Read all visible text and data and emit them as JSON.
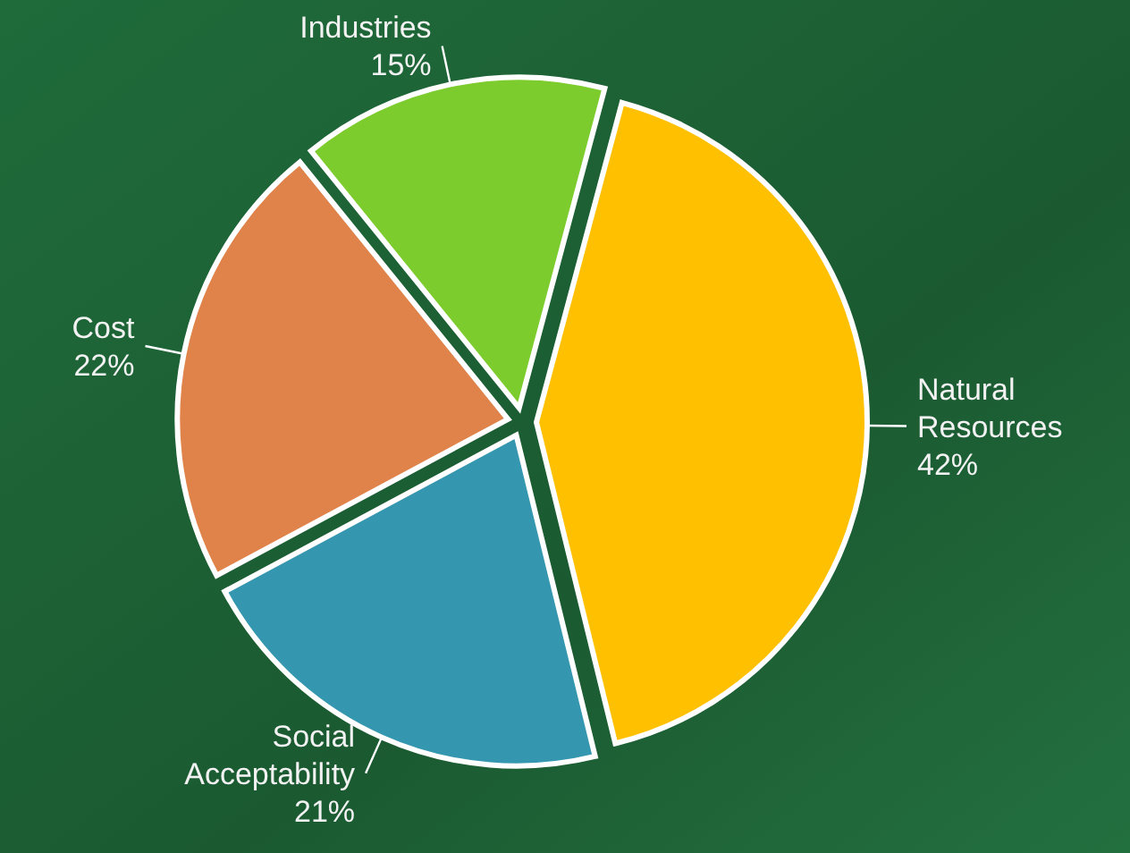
{
  "chart_data": {
    "type": "pie",
    "categories": [
      "Natural Resources",
      "Social Acceptability",
      "Cost",
      "Industries"
    ],
    "values": [
      42,
      21,
      22,
      15
    ],
    "colors": [
      "#ffc000",
      "#3596b0",
      "#e0834a",
      "#7ccc2e"
    ],
    "value_labels": [
      "42%",
      "21%",
      "22%",
      "15%"
    ]
  }
}
